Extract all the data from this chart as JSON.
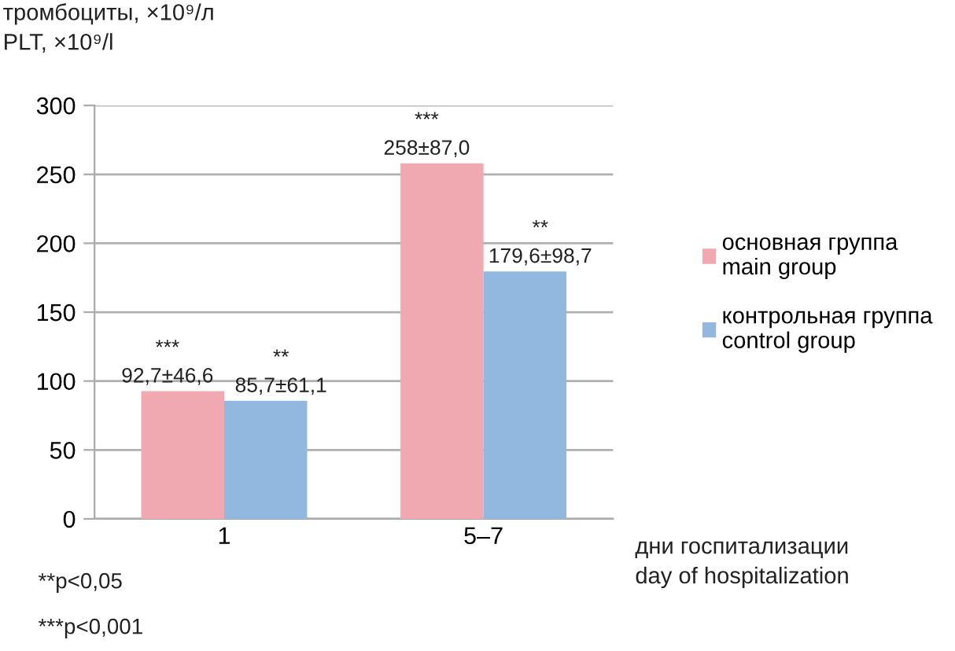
{
  "chart_data": {
    "type": "bar",
    "ylabel": "тромбоциты, ×10⁹/л\nPLT, ×10⁹/l",
    "xlabel": "дни госпитализации\nday of hospitalization",
    "categories": [
      "1",
      "5–7"
    ],
    "series": [
      {
        "name": "основная группа\nmain group",
        "color": "#f0a9b1",
        "values": [
          92.7,
          258
        ],
        "value_labels": [
          "***\n92,7±46,6",
          "***\n258±87,0"
        ]
      },
      {
        "name": "контрольная группа\ncontrol group",
        "color": "#93b8e0",
        "values": [
          85.7,
          179.6
        ],
        "value_labels": [
          "**\n85,7±61,1",
          "**\n179,6±98,7"
        ]
      }
    ],
    "ylim": [
      0,
      300
    ],
    "yticks": [
      0,
      50,
      100,
      150,
      200,
      250,
      300
    ],
    "grid": "y",
    "legend": "right",
    "annotations": [
      "**p<0,05",
      "***p<0,001"
    ]
  }
}
